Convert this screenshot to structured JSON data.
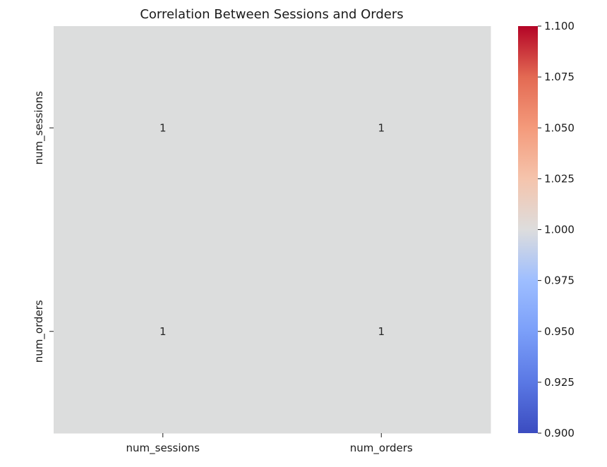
{
  "chart_data": {
    "type": "heatmap",
    "title": "Correlation Between Sessions and Orders",
    "xlabel": "",
    "ylabel": "",
    "x_categories": [
      "num_sessions",
      "num_orders"
    ],
    "y_categories": [
      "num_sessions",
      "num_orders"
    ],
    "values": [
      [
        1,
        1
      ],
      [
        1,
        1
      ]
    ],
    "annotations": [
      [
        "1",
        "1"
      ],
      [
        "1",
        "1"
      ]
    ],
    "colormap": "coolwarm",
    "colorbar": {
      "range": [
        0.9,
        1.1
      ],
      "ticks": [
        0.9,
        0.925,
        0.95,
        0.975,
        1.0,
        1.025,
        1.05,
        1.075,
        1.1
      ],
      "tick_labels": [
        "0.900",
        "0.925",
        "0.950",
        "0.975",
        "1.000",
        "1.025",
        "1.050",
        "1.075",
        "1.100"
      ]
    },
    "cell_color": "#dcdddd",
    "colors": {
      "low": "#3b4cc0",
      "mid": "#dddddd",
      "high": "#b40426"
    }
  }
}
